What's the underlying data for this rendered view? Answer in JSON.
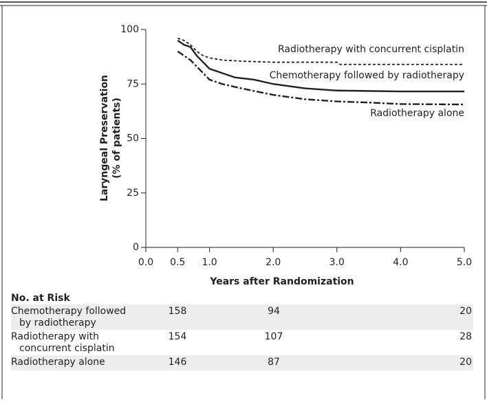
{
  "chart_data": {
    "type": "line",
    "ylabel": [
      "Laryngeal Preservation",
      "(% of patients)"
    ],
    "xlabel": "Years after Randomization",
    "xlim": [
      0,
      5
    ],
    "ylim": [
      0,
      100
    ],
    "xticks": [
      {
        "value": 0,
        "label": "0.0"
      },
      {
        "value": 0.5,
        "label": "0.5"
      },
      {
        "value": 1,
        "label": "1.0"
      },
      {
        "value": 2,
        "label": "2.0"
      },
      {
        "value": 3,
        "label": "3.0"
      },
      {
        "value": 4,
        "label": "4.0"
      },
      {
        "value": 5,
        "label": "5.0"
      }
    ],
    "yticks": [
      0,
      25,
      50,
      75,
      100
    ],
    "series": [
      {
        "name": "Radiotherapy with concurrent cisplatin",
        "color": "#231f20",
        "style": "dashed",
        "x": [
          0.5,
          0.6,
          0.7,
          0.8,
          0.9,
          1.0,
          1.2,
          1.5,
          2.0,
          2.5,
          3.0,
          3.05,
          4.0,
          5.0
        ],
        "values": [
          96,
          95,
          93,
          90,
          88,
          87,
          86,
          85.5,
          85,
          85,
          85,
          84,
          84,
          84
        ]
      },
      {
        "name": "Chemotherapy followed by radiotherapy",
        "color": "#231f20",
        "style": "solid",
        "x": [
          0.5,
          0.6,
          0.7,
          0.8,
          0.9,
          1.0,
          1.2,
          1.4,
          1.7,
          2.0,
          2.5,
          3.0,
          4.0,
          5.0
        ],
        "values": [
          95,
          93,
          92,
          88,
          85,
          82,
          80,
          78,
          77,
          75,
          73,
          72,
          71.6,
          71.6
        ]
      },
      {
        "name": "Radiotherapy alone",
        "color": "#231f20",
        "style": "dashdot",
        "x": [
          0.5,
          0.6,
          0.7,
          0.8,
          0.9,
          1.0,
          1.2,
          1.5,
          2.0,
          2.5,
          3.0,
          3.5,
          4.0,
          5.0
        ],
        "values": [
          90,
          88,
          86,
          83,
          80,
          77,
          75,
          73,
          70,
          68,
          67,
          66.5,
          65.8,
          65.6
        ]
      }
    ]
  },
  "risk_table": {
    "title": "No. at Risk",
    "rows": [
      {
        "label": [
          "Chemotherapy followed",
          "by radiotherapy"
        ],
        "counts": [
          158,
          94,
          20
        ]
      },
      {
        "label": [
          "Radiotherapy with",
          "concurrent cisplatin"
        ],
        "counts": [
          154,
          107,
          28
        ]
      },
      {
        "label": [
          "Radiotherapy alone"
        ],
        "counts": [
          146,
          87,
          20
        ]
      }
    ]
  }
}
